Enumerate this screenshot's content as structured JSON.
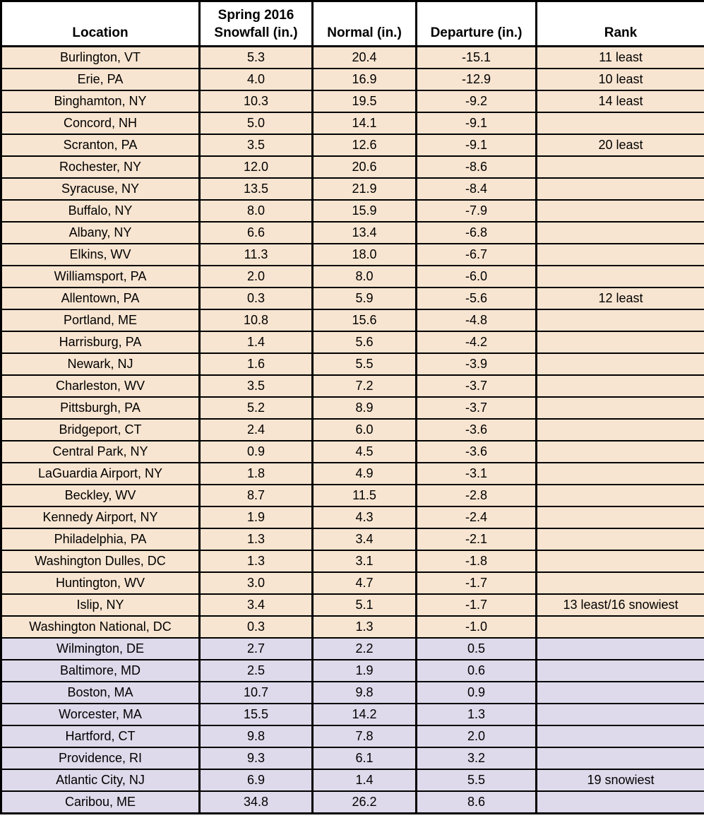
{
  "table": {
    "columns": [
      {
        "key": "location",
        "label": "Location"
      },
      {
        "key": "snowfall",
        "label": "Spring 2016\nSnowfall (in.)"
      },
      {
        "key": "normal",
        "label": "Normal (in.)"
      },
      {
        "key": "departure",
        "label": "Departure (in.)"
      },
      {
        "key": "rank",
        "label": "Rank"
      }
    ],
    "rows": [
      {
        "location": "Burlington, VT",
        "snowfall": "5.3",
        "normal": "20.4",
        "departure": "-15.1",
        "rank": "11 least"
      },
      {
        "location": "Erie, PA",
        "snowfall": "4.0",
        "normal": "16.9",
        "departure": "-12.9",
        "rank": "10 least"
      },
      {
        "location": "Binghamton, NY",
        "snowfall": "10.3",
        "normal": "19.5",
        "departure": "-9.2",
        "rank": "14 least"
      },
      {
        "location": "Concord, NH",
        "snowfall": "5.0",
        "normal": "14.1",
        "departure": "-9.1",
        "rank": ""
      },
      {
        "location": "Scranton, PA",
        "snowfall": "3.5",
        "normal": "12.6",
        "departure": "-9.1",
        "rank": "20 least"
      },
      {
        "location": "Rochester, NY",
        "snowfall": "12.0",
        "normal": "20.6",
        "departure": "-8.6",
        "rank": ""
      },
      {
        "location": "Syracuse, NY",
        "snowfall": "13.5",
        "normal": "21.9",
        "departure": "-8.4",
        "rank": ""
      },
      {
        "location": "Buffalo, NY",
        "snowfall": "8.0",
        "normal": "15.9",
        "departure": "-7.9",
        "rank": ""
      },
      {
        "location": "Albany, NY",
        "snowfall": "6.6",
        "normal": "13.4",
        "departure": "-6.8",
        "rank": ""
      },
      {
        "location": "Elkins, WV",
        "snowfall": "11.3",
        "normal": "18.0",
        "departure": "-6.7",
        "rank": ""
      },
      {
        "location": "Williamsport, PA",
        "snowfall": "2.0",
        "normal": "8.0",
        "departure": "-6.0",
        "rank": ""
      },
      {
        "location": "Allentown, PA",
        "snowfall": "0.3",
        "normal": "5.9",
        "departure": "-5.6",
        "rank": "12 least"
      },
      {
        "location": "Portland, ME",
        "snowfall": "10.8",
        "normal": "15.6",
        "departure": "-4.8",
        "rank": ""
      },
      {
        "location": "Harrisburg, PA",
        "snowfall": "1.4",
        "normal": "5.6",
        "departure": "-4.2",
        "rank": ""
      },
      {
        "location": "Newark, NJ",
        "snowfall": "1.6",
        "normal": "5.5",
        "departure": "-3.9",
        "rank": ""
      },
      {
        "location": "Charleston, WV",
        "snowfall": "3.5",
        "normal": "7.2",
        "departure": "-3.7",
        "rank": ""
      },
      {
        "location": "Pittsburgh, PA",
        "snowfall": "5.2",
        "normal": "8.9",
        "departure": "-3.7",
        "rank": ""
      },
      {
        "location": "Bridgeport, CT",
        "snowfall": "2.4",
        "normal": "6.0",
        "departure": "-3.6",
        "rank": ""
      },
      {
        "location": "Central Park, NY",
        "snowfall": "0.9",
        "normal": "4.5",
        "departure": "-3.6",
        "rank": ""
      },
      {
        "location": "LaGuardia Airport, NY",
        "snowfall": "1.8",
        "normal": "4.9",
        "departure": "-3.1",
        "rank": ""
      },
      {
        "location": "Beckley, WV",
        "snowfall": "8.7",
        "normal": "11.5",
        "departure": "-2.8",
        "rank": ""
      },
      {
        "location": "Kennedy Airport, NY",
        "snowfall": "1.9",
        "normal": "4.3",
        "departure": "-2.4",
        "rank": ""
      },
      {
        "location": "Philadelphia, PA",
        "snowfall": "1.3",
        "normal": "3.4",
        "departure": "-2.1",
        "rank": ""
      },
      {
        "location": "Washington Dulles, DC",
        "snowfall": "1.3",
        "normal": "3.1",
        "departure": "-1.8",
        "rank": ""
      },
      {
        "location": "Huntington, WV",
        "snowfall": "3.0",
        "normal": "4.7",
        "departure": "-1.7",
        "rank": ""
      },
      {
        "location": "Islip, NY",
        "snowfall": "3.4",
        "normal": "5.1",
        "departure": "-1.7",
        "rank": "13 least/16 snowiest"
      },
      {
        "location": "Washington National, DC",
        "snowfall": "0.3",
        "normal": "1.3",
        "departure": "-1.0",
        "rank": ""
      },
      {
        "location": "Wilmington, DE",
        "snowfall": "2.7",
        "normal": "2.2",
        "departure": "0.5",
        "rank": ""
      },
      {
        "location": "Baltimore, MD",
        "snowfall": "2.5",
        "normal": "1.9",
        "departure": "0.6",
        "rank": ""
      },
      {
        "location": "Boston, MA",
        "snowfall": "10.7",
        "normal": "9.8",
        "departure": "0.9",
        "rank": ""
      },
      {
        "location": "Worcester, MA",
        "snowfall": "15.5",
        "normal": "14.2",
        "departure": "1.3",
        "rank": ""
      },
      {
        "location": "Hartford, CT",
        "snowfall": "9.8",
        "normal": "7.8",
        "departure": "2.0",
        "rank": ""
      },
      {
        "location": "Providence, RI",
        "snowfall": "9.3",
        "normal": "6.1",
        "departure": "3.2",
        "rank": ""
      },
      {
        "location": "Atlantic City, NJ",
        "snowfall": "6.9",
        "normal": "1.4",
        "departure": "5.5",
        "rank": "19 snowiest"
      },
      {
        "location": "Caribou, ME",
        "snowfall": "34.8",
        "normal": "26.2",
        "departure": "8.6",
        "rank": ""
      }
    ]
  },
  "colors": {
    "negative_row_bg": "#F8E5D1",
    "positive_row_bg": "#DEDAEB",
    "header_bg": "#FFFFFF",
    "border": "#000000"
  },
  "chart_data": {
    "type": "table",
    "title": "Spring 2016 Snowfall vs Normal — Northeast US Locations",
    "categories": [
      "Burlington, VT",
      "Erie, PA",
      "Binghamton, NY",
      "Concord, NH",
      "Scranton, PA",
      "Rochester, NY",
      "Syracuse, NY",
      "Buffalo, NY",
      "Albany, NY",
      "Elkins, WV",
      "Williamsport, PA",
      "Allentown, PA",
      "Portland, ME",
      "Harrisburg, PA",
      "Newark, NJ",
      "Charleston, WV",
      "Pittsburgh, PA",
      "Bridgeport, CT",
      "Central Park, NY",
      "LaGuardia Airport, NY",
      "Beckley, WV",
      "Kennedy Airport, NY",
      "Philadelphia, PA",
      "Washington Dulles, DC",
      "Huntington, WV",
      "Islip, NY",
      "Washington National, DC",
      "Wilmington, DE",
      "Baltimore, MD",
      "Boston, MA",
      "Worcester, MA",
      "Hartford, CT",
      "Providence, RI",
      "Atlantic City, NJ",
      "Caribou, ME"
    ],
    "series": [
      {
        "name": "Spring 2016 Snowfall (in.)",
        "values": [
          5.3,
          4.0,
          10.3,
          5.0,
          3.5,
          12.0,
          13.5,
          8.0,
          6.6,
          11.3,
          2.0,
          0.3,
          10.8,
          1.4,
          1.6,
          3.5,
          5.2,
          2.4,
          0.9,
          1.8,
          8.7,
          1.9,
          1.3,
          1.3,
          3.0,
          3.4,
          0.3,
          2.7,
          2.5,
          10.7,
          15.5,
          9.8,
          9.3,
          6.9,
          34.8
        ]
      },
      {
        "name": "Normal (in.)",
        "values": [
          20.4,
          16.9,
          19.5,
          14.1,
          12.6,
          20.6,
          21.9,
          15.9,
          13.4,
          18.0,
          8.0,
          5.9,
          15.6,
          5.6,
          5.5,
          7.2,
          8.9,
          6.0,
          4.5,
          4.9,
          11.5,
          4.3,
          3.4,
          3.1,
          4.7,
          5.1,
          1.3,
          2.2,
          1.9,
          9.8,
          14.2,
          7.8,
          6.1,
          1.4,
          26.2
        ]
      },
      {
        "name": "Departure (in.)",
        "values": [
          -15.1,
          -12.9,
          -9.2,
          -9.1,
          -9.1,
          -8.6,
          -8.4,
          -7.9,
          -6.8,
          -6.7,
          -6.0,
          -5.6,
          -4.8,
          -4.2,
          -3.9,
          -3.7,
          -3.7,
          -3.6,
          -3.6,
          -3.1,
          -2.8,
          -2.4,
          -2.1,
          -1.8,
          -1.7,
          -1.7,
          -1.0,
          0.5,
          0.6,
          0.9,
          1.3,
          2.0,
          3.2,
          5.5,
          8.6
        ]
      }
    ],
    "annotations": [
      {
        "category": "Burlington, VT",
        "rank": "11 least"
      },
      {
        "category": "Erie, PA",
        "rank": "10 least"
      },
      {
        "category": "Binghamton, NY",
        "rank": "14 least"
      },
      {
        "category": "Scranton, PA",
        "rank": "20 least"
      },
      {
        "category": "Allentown, PA",
        "rank": "12 least"
      },
      {
        "category": "Islip, NY",
        "rank": "13 least/16 snowiest"
      },
      {
        "category": "Atlantic City, NJ",
        "rank": "19 snowiest"
      }
    ],
    "layout_hints": {
      "row_shading": "rows with negative departure are tan (#F8E5D1); rows with positive departure are lavender (#DEDAEB)",
      "grid": "on"
    }
  }
}
